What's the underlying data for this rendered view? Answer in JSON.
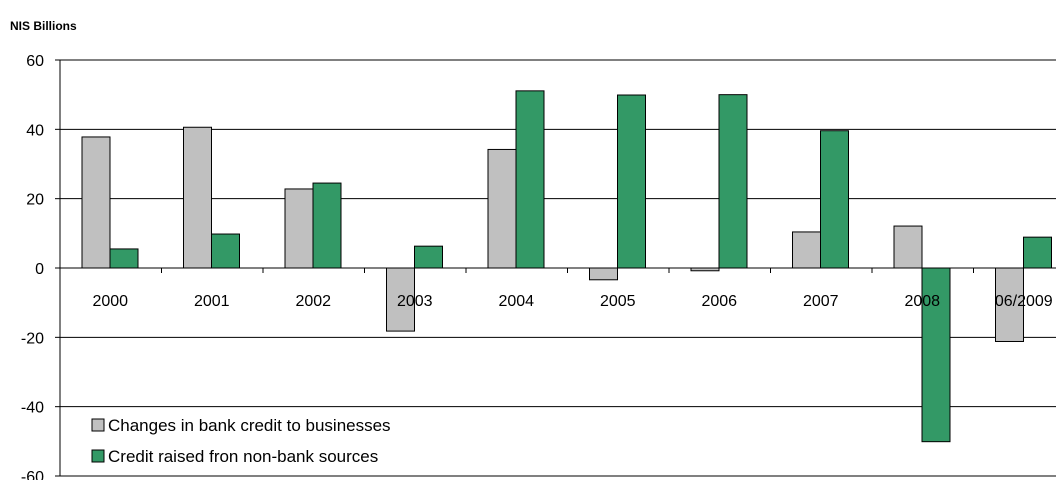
{
  "chart_data": {
    "type": "bar",
    "ylabel": "NIS Billions",
    "categories": [
      "2000",
      "2001",
      "2002",
      "2003",
      "2004",
      "2005",
      "2006",
      "2007",
      "2008",
      "06/2009"
    ],
    "series": [
      {
        "name": "Changes in bank credit to businesses",
        "color": "#c0c0c0",
        "values": [
          37.8,
          40.6,
          22.8,
          -18.2,
          34.2,
          -3.4,
          -0.8,
          10.4,
          12.1,
          -21.2
        ]
      },
      {
        "name": "Credit raised fron non-bank sources",
        "color": "#339966",
        "values": [
          5.5,
          9.8,
          24.5,
          6.3,
          51.1,
          49.9,
          50.0,
          39.6,
          -50.1,
          8.9
        ]
      }
    ],
    "ylim": [
      -60,
      60
    ],
    "yticks": [
      60,
      40,
      20,
      0,
      -20,
      -40,
      -60
    ],
    "grid": true,
    "legend_position": "bottom-left"
  }
}
